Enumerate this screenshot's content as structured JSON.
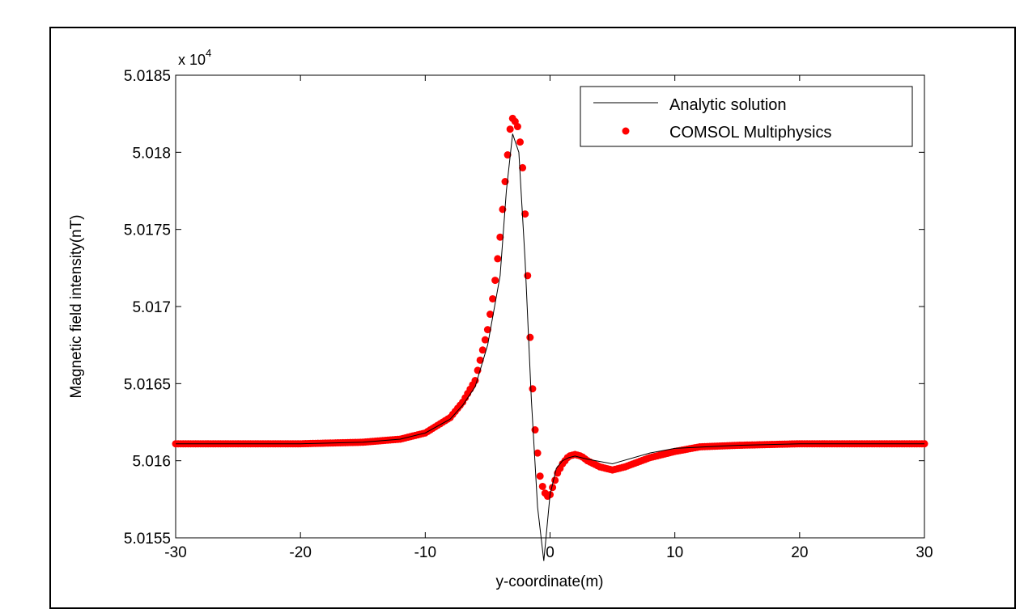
{
  "chart_data": {
    "type": "line",
    "title": "",
    "xlabel": "y-coordinate(m)",
    "ylabel": "Magnetic field intensity(nT)",
    "y_scale_label": "x 10",
    "y_scale_exponent": "4",
    "xlim": [
      -30,
      30
    ],
    "ylim": [
      5.0155,
      5.0185
    ],
    "x_ticks": [
      -30,
      -20,
      -10,
      0,
      10,
      20,
      30
    ],
    "y_ticks": [
      5.0155,
      5.016,
      5.0165,
      5.017,
      5.0175,
      5.018,
      5.0185
    ],
    "x_tick_labels": [
      "-30",
      "-20",
      "-10",
      "0",
      "10",
      "20",
      "30"
    ],
    "y_tick_labels": [
      "5.0155",
      "5.016",
      "5.0165",
      "5.017",
      "5.0175",
      "5.018",
      "5.0185"
    ],
    "legend_position": "top-right",
    "series": [
      {
        "name": "Analytic solution",
        "style": "line",
        "color": "#000000",
        "x": [
          -30,
          -20,
          -15,
          -12,
          -10,
          -8,
          -7,
          -6,
          -5,
          -4,
          -3.5,
          -3,
          -2.5,
          -2,
          -1.5,
          -1,
          -0.5,
          0,
          0.5,
          1,
          1.5,
          2,
          2.5,
          3,
          5,
          8,
          10,
          15,
          20,
          25,
          30
        ],
        "y": [
          5.01611,
          5.01611,
          5.01612,
          5.01614,
          5.01618,
          5.01627,
          5.01636,
          5.01648,
          5.01675,
          5.0172,
          5.01775,
          5.01812,
          5.018,
          5.0173,
          5.0164,
          5.0157,
          5.01535,
          5.01578,
          5.01595,
          5.016,
          5.01602,
          5.01603,
          5.01602,
          5.01601,
          5.01598,
          5.01605,
          5.01608,
          5.0161,
          5.01611,
          5.01611,
          5.01611
        ]
      },
      {
        "name": "COMSOL Multiphysics",
        "style": "markers",
        "color": "#ff0000",
        "x": [
          -30,
          -20,
          -15,
          -12,
          -10,
          -8,
          -7,
          -6,
          -5,
          -4.5,
          -4,
          -3.5,
          -3.2,
          -3,
          -2.8,
          -2.5,
          -2.2,
          -2,
          -1.8,
          -1.5,
          -1.2,
          -1,
          -0.8,
          -0.5,
          -0.2,
          0,
          0.3,
          0.6,
          1,
          1.5,
          2,
          2.5,
          3,
          4,
          5,
          6,
          8,
          10,
          12,
          15,
          20,
          25,
          30
        ],
        "y": [
          5.01611,
          5.01611,
          5.01612,
          5.01614,
          5.01618,
          5.01628,
          5.01638,
          5.01652,
          5.01685,
          5.0171,
          5.01745,
          5.0179,
          5.01815,
          5.01822,
          5.0182,
          5.01815,
          5.0179,
          5.0176,
          5.0172,
          5.0166,
          5.0162,
          5.01605,
          5.0159,
          5.0158,
          5.01577,
          5.01578,
          5.01585,
          5.01592,
          5.01598,
          5.01603,
          5.01604,
          5.01603,
          5.016,
          5.01596,
          5.01594,
          5.01596,
          5.01602,
          5.01606,
          5.01609,
          5.0161,
          5.01611,
          5.01611,
          5.01611
        ]
      }
    ]
  }
}
